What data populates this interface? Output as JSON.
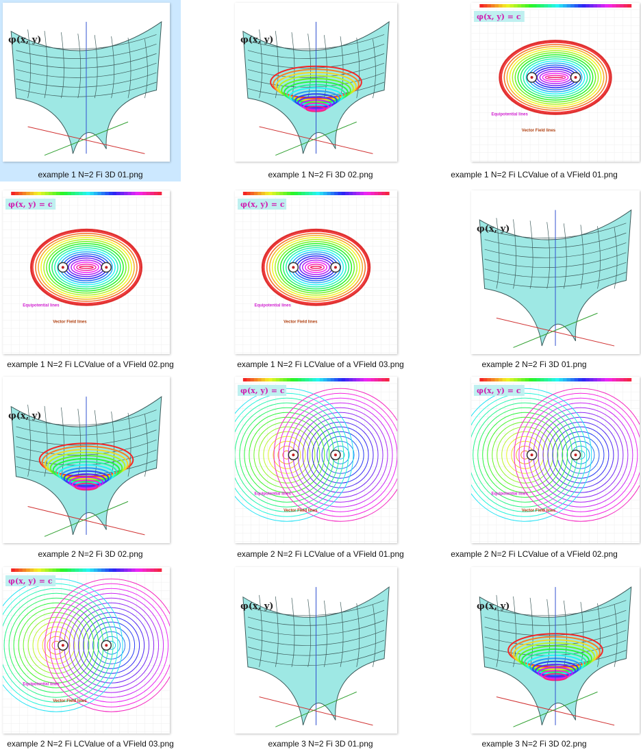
{
  "files": [
    {
      "name": "example 1  N=2  Fi 3D 01.png",
      "kind": "surface",
      "title": "φ(x, y)",
      "selected": true
    },
    {
      "name": "example 1  N=2  Fi 3D 02.png",
      "kind": "surface-rainbow",
      "title": "φ(x, y)"
    },
    {
      "name": "example 1  N=2  Fi LCValue of a VField 01.png",
      "kind": "contour",
      "title": "φ(x, y) = c",
      "labels": [
        "Equipotential lines",
        "Vector Field lines"
      ]
    },
    {
      "name": "example 1  N=2  Fi LCValue of a VField 02.png",
      "kind": "contour",
      "title": "φ(x, y) = c",
      "labels": [
        "Equipotential lines",
        "Vector Field lines"
      ]
    },
    {
      "name": "example 1  N=2  Fi LCValue of a VField 03.png",
      "kind": "contour",
      "title": "φ(x, y) = c",
      "labels": [
        "Equipotential lines",
        "Vector Field lines"
      ]
    },
    {
      "name": "example 2  N=2  Fi 3D 01.png",
      "kind": "surface",
      "title": "φ(x, y)"
    },
    {
      "name": "example 2  N=2  Fi 3D 02.png",
      "kind": "surface-rainbow",
      "title": "φ(x, y)"
    },
    {
      "name": "example 2  N=2  Fi LCValue of a VField 01.png",
      "kind": "contour2",
      "title": "φ(x, y) = c",
      "labels": [
        "Equipotential lines",
        "Vector Field lines"
      ]
    },
    {
      "name": "example 2  N=2  Fi LCValue of a VField 02.png",
      "kind": "contour2",
      "title": "φ(x, y) = c",
      "labels": [
        "Equipotential lines",
        "Vector Field lines"
      ]
    },
    {
      "name": "example 2  N=2  Fi LCValue of a VField 03.png",
      "kind": "contour2",
      "title": "φ(x, y) = c",
      "labels": [
        "Equipotential lines",
        "Vector Field lines"
      ]
    },
    {
      "name": "example 3  N=2  Fi 3D 01.png",
      "kind": "surface",
      "title": "φ(x, y)"
    },
    {
      "name": "example 3  N=2  Fi 3D 02.png",
      "kind": "surface-rainbow",
      "title": "φ(x, y)"
    }
  ],
  "colors": {
    "selection": "#cce8ff",
    "surface": "#9ee8e4",
    "mesh": "#3c5a5a"
  }
}
